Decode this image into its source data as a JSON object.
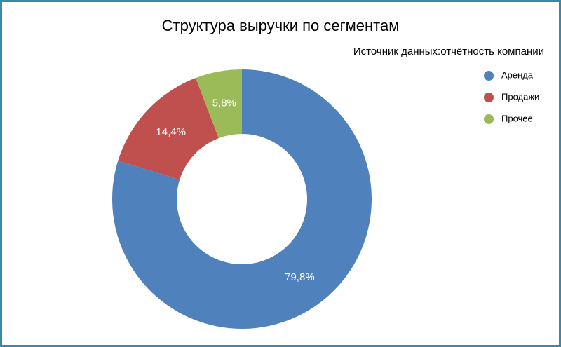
{
  "chart_data": {
    "type": "donut",
    "title": "Структура выручки по сегментам",
    "subtitle": "Источник данных:отчётность компании",
    "categories": [
      "Аренда",
      "Продажи",
      "Прочее"
    ],
    "values": [
      79.8,
      14.4,
      5.8
    ],
    "value_labels": [
      "79,8%",
      "14,4%",
      "5,8%"
    ],
    "colors": [
      "#4f81bd",
      "#c0504d",
      "#9bbb59"
    ],
    "legend": "right"
  }
}
